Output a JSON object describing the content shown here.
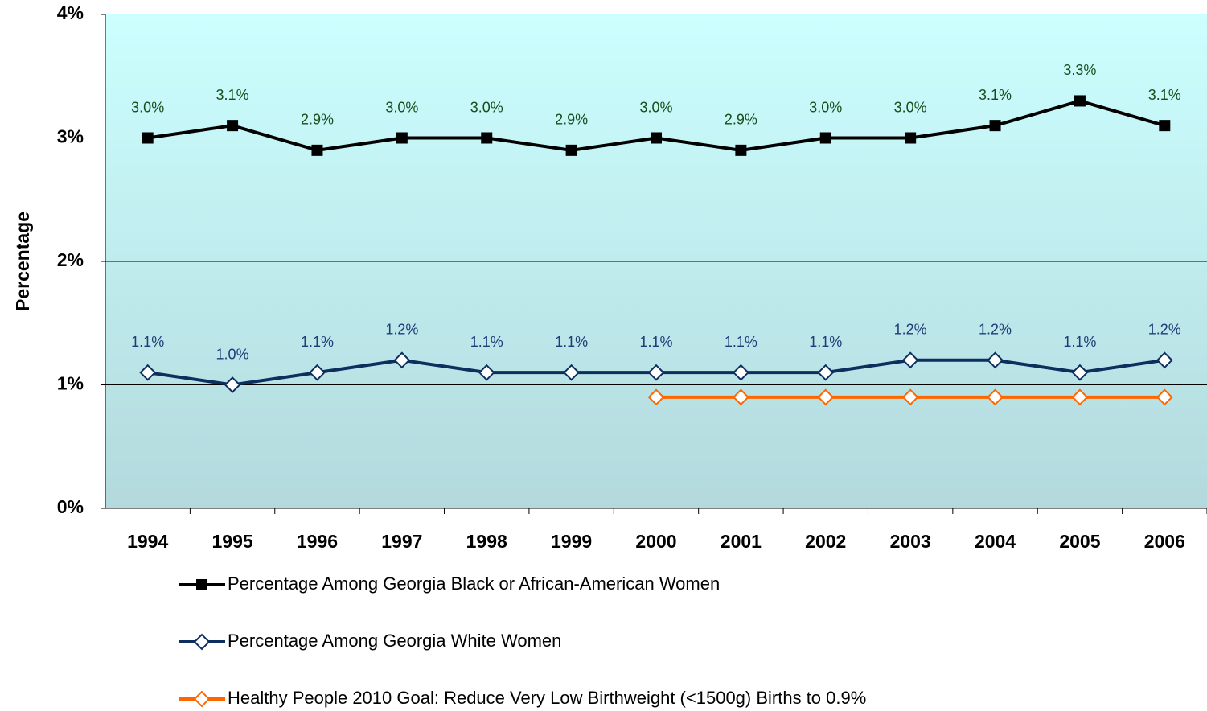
{
  "chart_data": {
    "type": "line",
    "y_label": "Percentage",
    "categories": [
      "1994",
      "1995",
      "1996",
      "1997",
      "1998",
      "1999",
      "2000",
      "2001",
      "2002",
      "2003",
      "2004",
      "2005",
      "2006"
    ],
    "series": [
      {
        "name": "Percentage Among Georgia Black or African-American Women",
        "color": "#000000",
        "marker": "square",
        "label_color": "#1b4d1b",
        "values": [
          3.0,
          3.1,
          2.9,
          3.0,
          3.0,
          2.9,
          3.0,
          2.9,
          3.0,
          3.0,
          3.1,
          3.3,
          3.1
        ],
        "value_labels": [
          "3.0%",
          "3.1%",
          "2.9%",
          "3.0%",
          "3.0%",
          "2.9%",
          "3.0%",
          "2.9%",
          "3.0%",
          "3.0%",
          "3.1%",
          "3.3%",
          "3.1%"
        ]
      },
      {
        "name": "Percentage Among Georgia White Women",
        "color": "#0d2f5e",
        "marker": "diamond",
        "label_color": "#1f3c78",
        "values": [
          1.1,
          1.0,
          1.1,
          1.2,
          1.1,
          1.1,
          1.1,
          1.1,
          1.1,
          1.2,
          1.2,
          1.1,
          1.2
        ],
        "value_labels": [
          "1.1%",
          "1.0%",
          "1.1%",
          "1.2%",
          "1.1%",
          "1.1%",
          "1.1%",
          "1.1%",
          "1.1%",
          "1.2%",
          "1.2%",
          "1.1%",
          "1.2%"
        ]
      },
      {
        "name": "Healthy People 2010 Goal:  Reduce Very Low Birthweight (<1500g) Births to 0.9%",
        "color": "#ff6600",
        "marker": "diamond",
        "values": [
          null,
          null,
          null,
          null,
          null,
          null,
          0.9,
          0.9,
          0.9,
          0.9,
          0.9,
          0.9,
          0.9
        ]
      }
    ],
    "ylim": [
      0,
      4
    ],
    "yticks": [
      {
        "value": 0,
        "label": "0%"
      },
      {
        "value": 1,
        "label": "1%"
      },
      {
        "value": 2,
        "label": "2%"
      },
      {
        "value": 3,
        "label": "3%"
      },
      {
        "value": 4,
        "label": "4%"
      }
    ],
    "grid": true
  }
}
